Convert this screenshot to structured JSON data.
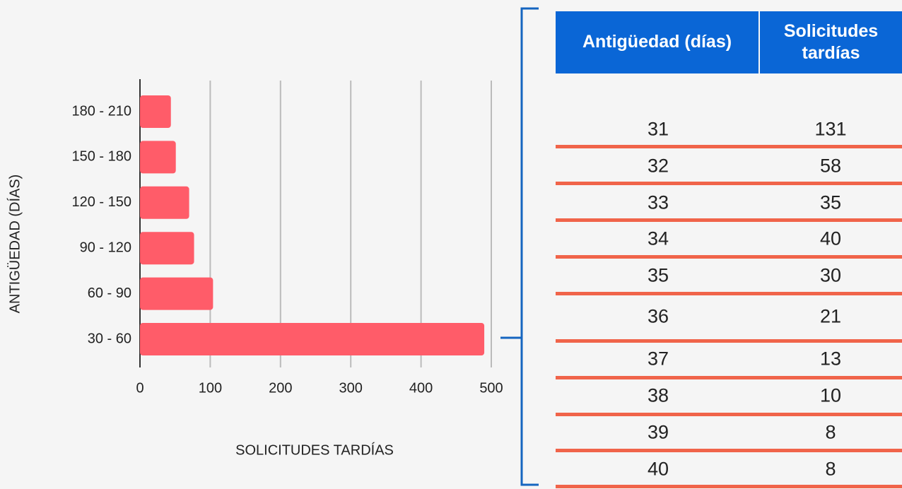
{
  "chart_data": {
    "type": "hbar",
    "xlabel": "SOLICITUDES TARDÍAS",
    "ylabel": "ANTIGÜEDAD (DÍAS)",
    "categories": [
      "180 - 210",
      "150 - 180",
      "120 - 150",
      "90 - 120",
      "60 - 90",
      "30 - 60"
    ],
    "values": [
      44,
      51,
      70,
      77,
      104,
      490
    ],
    "color": "#ff5c69",
    "xlim": [
      0,
      500
    ],
    "xticks": [
      0,
      100,
      200,
      300,
      400,
      500
    ],
    "grid": true
  },
  "table": {
    "headers": [
      "Antigüedad (días)",
      "Solicitudes tardías"
    ],
    "rows": [
      [
        31,
        131
      ],
      [
        32,
        58
      ],
      [
        33,
        35
      ],
      [
        34,
        40
      ],
      [
        35,
        30
      ],
      [
        36,
        21
      ],
      [
        37,
        13
      ],
      [
        38,
        10
      ],
      [
        39,
        8
      ],
      [
        40,
        8
      ]
    ]
  }
}
